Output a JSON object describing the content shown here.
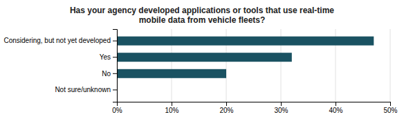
{
  "chart_data": {
    "type": "bar",
    "orientation": "horizontal",
    "title": "Has your agency developed applications or tools that use real-time\nmobile data from vehicle fleets?",
    "categories": [
      "Not sure/unknown",
      "No",
      "Yes",
      "Considering, but not yet developed"
    ],
    "values": [
      0,
      20,
      32,
      47
    ],
    "color": "#1a5262",
    "xlim": [
      0,
      50
    ],
    "xticks": [
      {
        "value": 0,
        "label": "0%"
      },
      {
        "value": 10,
        "label": "10%"
      },
      {
        "value": 20,
        "label": "20%"
      },
      {
        "value": 30,
        "label": "30%"
      },
      {
        "value": 40,
        "label": "40%"
      },
      {
        "value": 50,
        "label": "50%"
      }
    ],
    "grid": true
  }
}
